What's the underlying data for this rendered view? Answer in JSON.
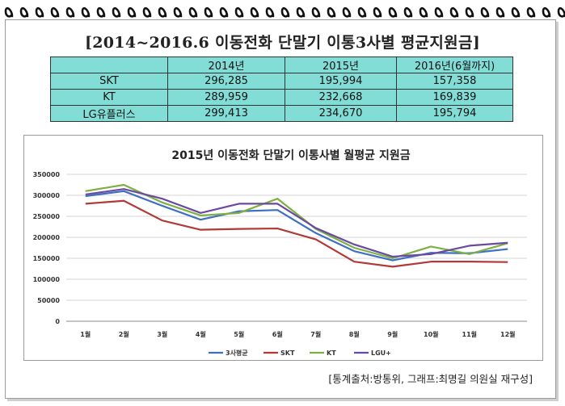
{
  "title": "[2014~2016.6  이동전화  단말기  이통3사별  평균지원금]",
  "table": {
    "headers": [
      "",
      "2014년",
      "2015년",
      "2016년(6월까지)"
    ],
    "rows": [
      {
        "label": "SKT",
        "values": [
          "296,285",
          "195,994",
          "157,358"
        ]
      },
      {
        "label": "KT",
        "values": [
          "289,959",
          "232,668",
          "169,839"
        ]
      },
      {
        "label": "LG유플러스",
        "values": [
          "299,413",
          "234,670",
          "195,794"
        ]
      }
    ],
    "color": "#82ddd7"
  },
  "chart_data": {
    "type": "line",
    "title": "2015년 이동전화 단말기 이통사별 월평균 지원금",
    "categories": [
      "1월",
      "2월",
      "3월",
      "4월",
      "5월",
      "6월",
      "7월",
      "8월",
      "9월",
      "10월",
      "11월",
      "12월"
    ],
    "ylim": [
      0,
      350000
    ],
    "yticks": [
      "0",
      "50000",
      "100000",
      "150000",
      "200000",
      "250000",
      "300000",
      "350000"
    ],
    "ytick_values": [
      0,
      50000,
      100000,
      150000,
      200000,
      250000,
      300000,
      350000
    ],
    "grid": true,
    "legend": "bottom",
    "series": [
      {
        "name": "3사평균",
        "color": "#3f6fc2",
        "values": [
          298000,
          310000,
          275000,
          242000,
          262000,
          265000,
          210000,
          167000,
          145000,
          163000,
          162000,
          172000
        ]
      },
      {
        "name": "SKT",
        "color": "#b03a35",
        "values": [
          280000,
          287000,
          240000,
          218000,
          220000,
          221000,
          195000,
          142000,
          130000,
          142000,
          142000,
          141000
        ]
      },
      {
        "name": "KT",
        "color": "#7db043",
        "values": [
          310000,
          325000,
          283000,
          252000,
          258000,
          292000,
          220000,
          175000,
          150000,
          178000,
          160000,
          186000
        ]
      },
      {
        "name": "LGU+",
        "color": "#6a4a9e",
        "values": [
          302000,
          315000,
          292000,
          258000,
          280000,
          280000,
          222000,
          183000,
          154000,
          160000,
          180000,
          187000
        ]
      }
    ]
  },
  "source": "[통계출처:방통위,  그래프:최명길  의원실  재구성]"
}
